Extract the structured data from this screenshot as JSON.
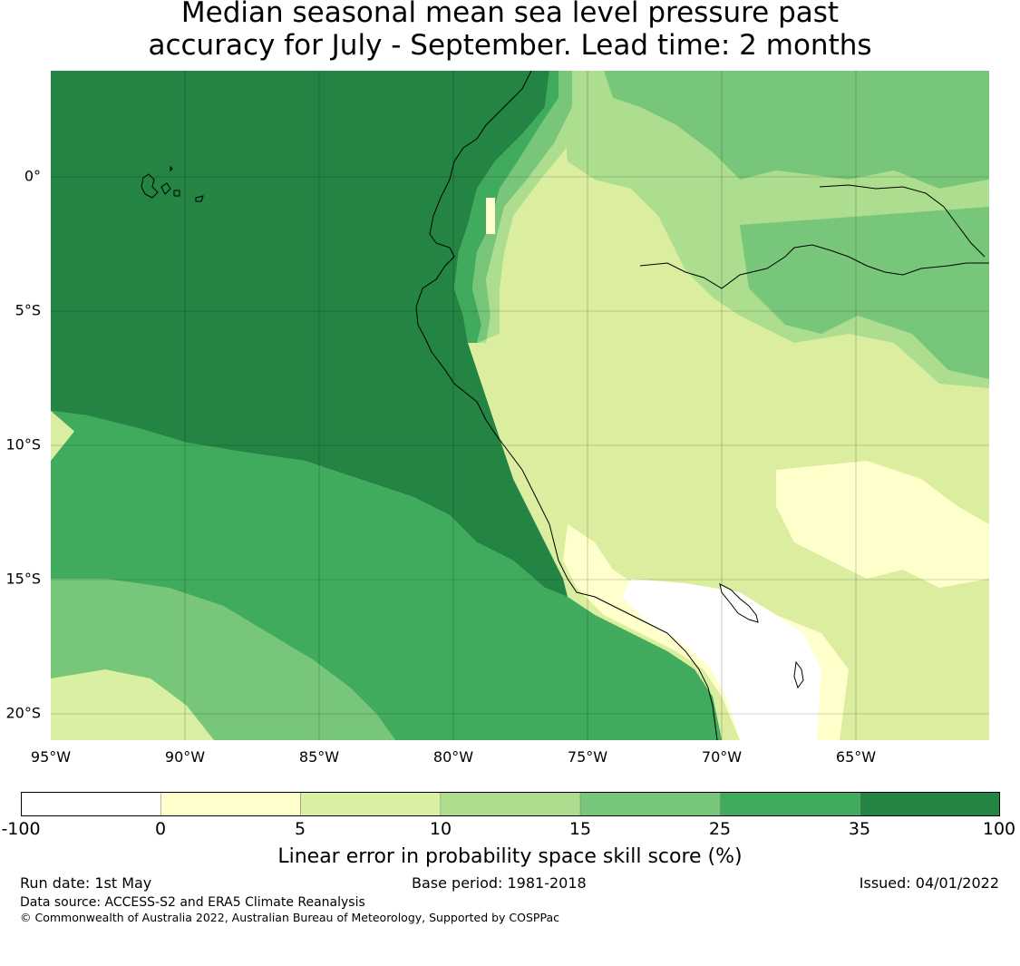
{
  "title": {
    "line1": "Median seasonal mean sea level pressure past",
    "line2": "accuracy for July - September. Lead time: 2 months"
  },
  "map": {
    "lat_labels": [
      "0°",
      "5°S",
      "10°S",
      "15°S",
      "20°S"
    ],
    "lon_labels": [
      "95°W",
      "90°W",
      "85°W",
      "80°W",
      "75°W",
      "70°W",
      "65°W"
    ]
  },
  "colorbar": {
    "label": "Linear error in probability space skill score (%)",
    "ticks": [
      "-100",
      "0",
      "5",
      "10",
      "15",
      "25",
      "35",
      "100"
    ],
    "colors": [
      "#ffffff",
      "#ffffcc",
      "#d9f0a3",
      "#addd8e",
      "#78c679",
      "#41ab5d",
      "#238443"
    ]
  },
  "footer": {
    "run_date": "Run date: 1st May",
    "base_period": "Base period: 1981-2018",
    "issued": "Issued: 04/01/2022",
    "data_source": "Data source: ACCESS-S2 and ERA5 Climate Reanalysis",
    "copyright": "© Commonwealth of Australia 2022, Australian Bureau of Meteorology, Supported by COSPPac"
  }
}
